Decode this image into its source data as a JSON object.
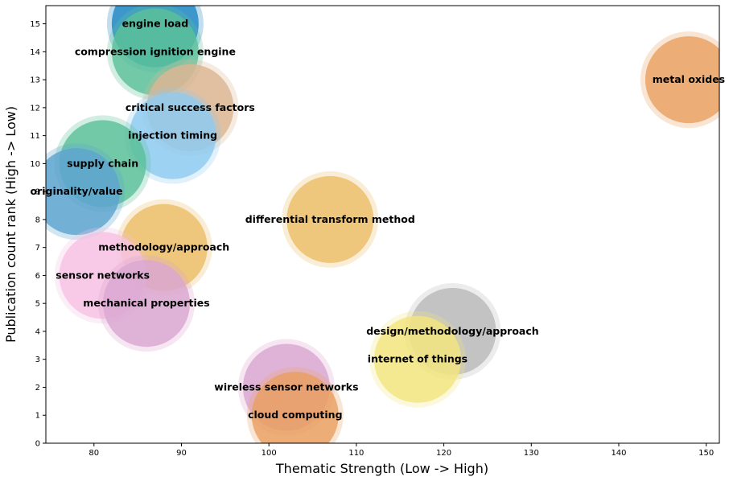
{
  "chart_data": {
    "type": "scatter",
    "title": "",
    "xlabel": "Thematic Strength (Low -> High)",
    "ylabel": "Publication count rank (High -> Low)",
    "xlim": [
      74.5,
      151.5
    ],
    "ylim": [
      0,
      15.65
    ],
    "xticks": [
      80,
      90,
      100,
      110,
      120,
      130,
      140,
      150
    ],
    "yticks": [
      0,
      1,
      2,
      3,
      4,
      5,
      6,
      7,
      8,
      9,
      10,
      11,
      12,
      13,
      14,
      15
    ],
    "grid": false,
    "points": [
      {
        "label": "engine load",
        "x": 87,
        "y": 15,
        "color": "#1f88c4"
      },
      {
        "label": "compression ignition engine",
        "x": 87,
        "y": 14,
        "color": "#5cc19a"
      },
      {
        "label": "metal oxides",
        "x": 148,
        "y": 13,
        "color": "#e9a062"
      },
      {
        "label": "critical success factors",
        "x": 91,
        "y": 12,
        "color": "#dcb692"
      },
      {
        "label": "injection timing",
        "x": 89,
        "y": 11,
        "color": "#8fcbef"
      },
      {
        "label": "supply chain",
        "x": 81,
        "y": 10,
        "color": "#5cc19a"
      },
      {
        "label": "originality/value",
        "x": 78,
        "y": 9,
        "color": "#5ea4d0"
      },
      {
        "label": "differential transform method",
        "x": 107,
        "y": 8,
        "color": "#ecbd68"
      },
      {
        "label": "methodology/approach",
        "x": 88,
        "y": 7,
        "color": "#ecbd68"
      },
      {
        "label": "sensor networks",
        "x": 81,
        "y": 6,
        "color": "#f6c2e3"
      },
      {
        "label": "mechanical properties",
        "x": 86,
        "y": 5,
        "color": "#dba7d2"
      },
      {
        "label": "design/methodology/approach",
        "x": 121,
        "y": 4,
        "color": "#b9b9b9"
      },
      {
        "label": "internet of things",
        "x": 117,
        "y": 3,
        "color": "#f1e580"
      },
      {
        "label": "wireless sensor networks",
        "x": 102,
        "y": 2,
        "color": "#dba7d2"
      },
      {
        "label": "cloud computing",
        "x": 103,
        "y": 1,
        "color": "#e9a062"
      }
    ]
  }
}
